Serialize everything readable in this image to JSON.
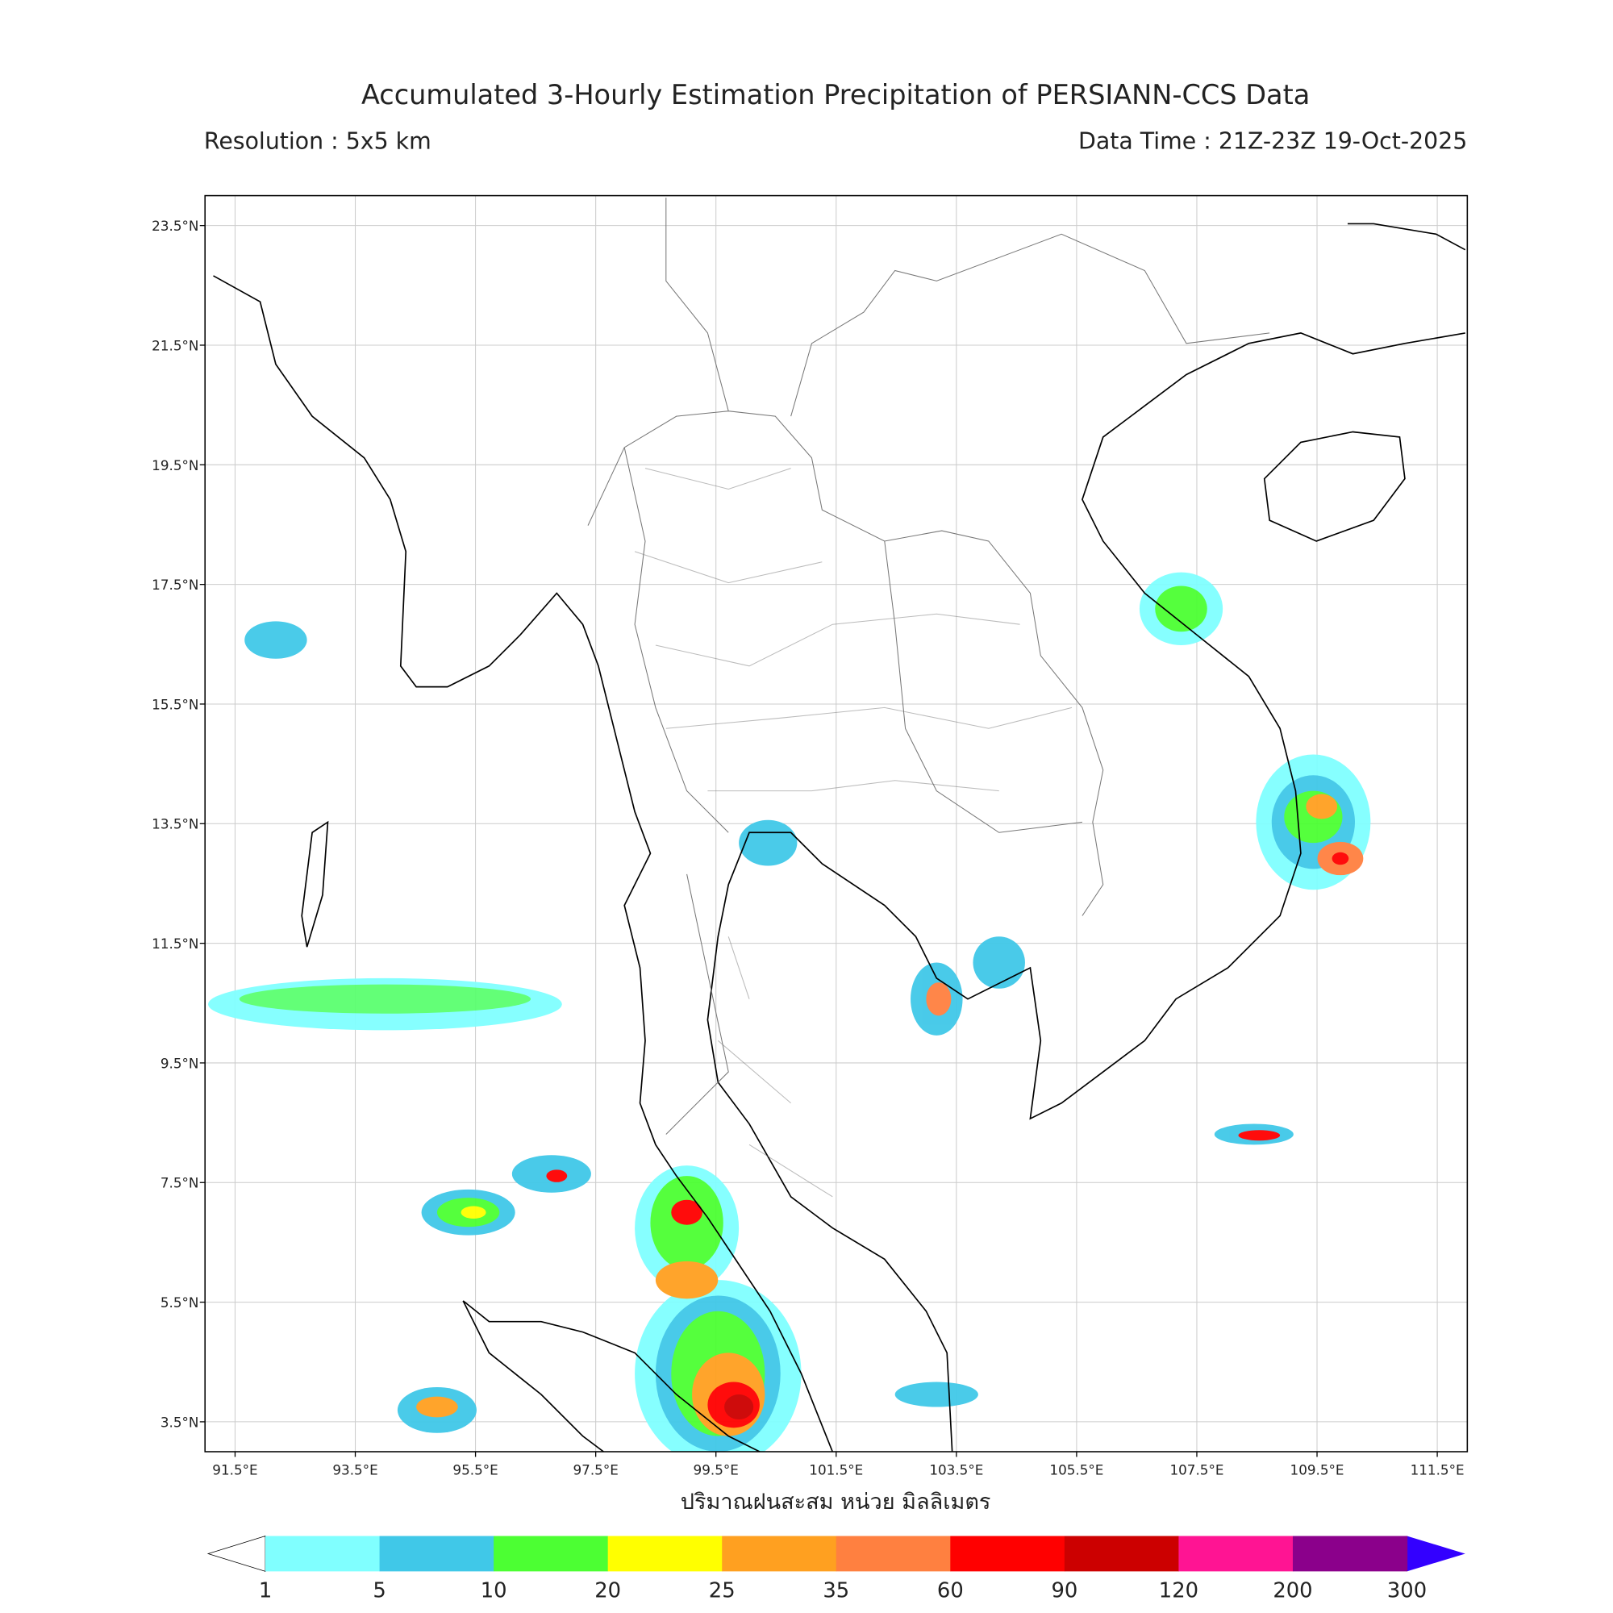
{
  "title": "Accumulated 3-Hourly Estimation Precipitation of PERSIANN-CCS Data",
  "resolution": "Resolution : 5x5 km",
  "data_time": "Data Time : 21Z-23Z 19-Oct-2025",
  "map": {
    "xlim": [
      91,
      112
    ],
    "ylim": [
      3,
      24
    ],
    "xticks": [
      {
        "value": 91.5,
        "label": "91.5°E"
      },
      {
        "value": 93.5,
        "label": "93.5°E"
      },
      {
        "value": 95.5,
        "label": "95.5°E"
      },
      {
        "value": 97.5,
        "label": "97.5°E"
      },
      {
        "value": 99.5,
        "label": "99.5°E"
      },
      {
        "value": 101.5,
        "label": "101.5°E"
      },
      {
        "value": 103.5,
        "label": "103.5°E"
      },
      {
        "value": 105.5,
        "label": "105.5°E"
      },
      {
        "value": 107.5,
        "label": "107.5°E"
      },
      {
        "value": 109.5,
        "label": "109.5°E"
      },
      {
        "value": 111.5,
        "label": "111.5°E"
      }
    ],
    "yticks": [
      {
        "value": 3.5,
        "label": "3.5°N"
      },
      {
        "value": 5.5,
        "label": "5.5°N"
      },
      {
        "value": 7.5,
        "label": "7.5°N"
      },
      {
        "value": 9.5,
        "label": "9.5°N"
      },
      {
        "value": 11.5,
        "label": "11.5°N"
      },
      {
        "value": 13.5,
        "label": "13.5°N"
      },
      {
        "value": 15.5,
        "label": "15.5°N"
      },
      {
        "value": 17.5,
        "label": "17.5°N"
      },
      {
        "value": 19.5,
        "label": "19.5°N"
      },
      {
        "value": 21.5,
        "label": "21.5°N"
      },
      {
        "value": 23.5,
        "label": "23.5°N"
      }
    ],
    "xlabel": "ปริมาณฝนสะสม หน่วย มิลลิเมตร"
  },
  "colorbar": {
    "levels": [
      1,
      5,
      10,
      20,
      25,
      35,
      60,
      90,
      120,
      200,
      300
    ],
    "colors": [
      "#80ffff",
      "#40c8e8",
      "#4cff33",
      "#ffff00",
      "#ffa020",
      "#ff8040",
      "#ff0000",
      "#cc0000",
      "#ff1493",
      "#8b008b"
    ],
    "under_color": "#ffffff",
    "over_color": "#3300ff"
  }
}
